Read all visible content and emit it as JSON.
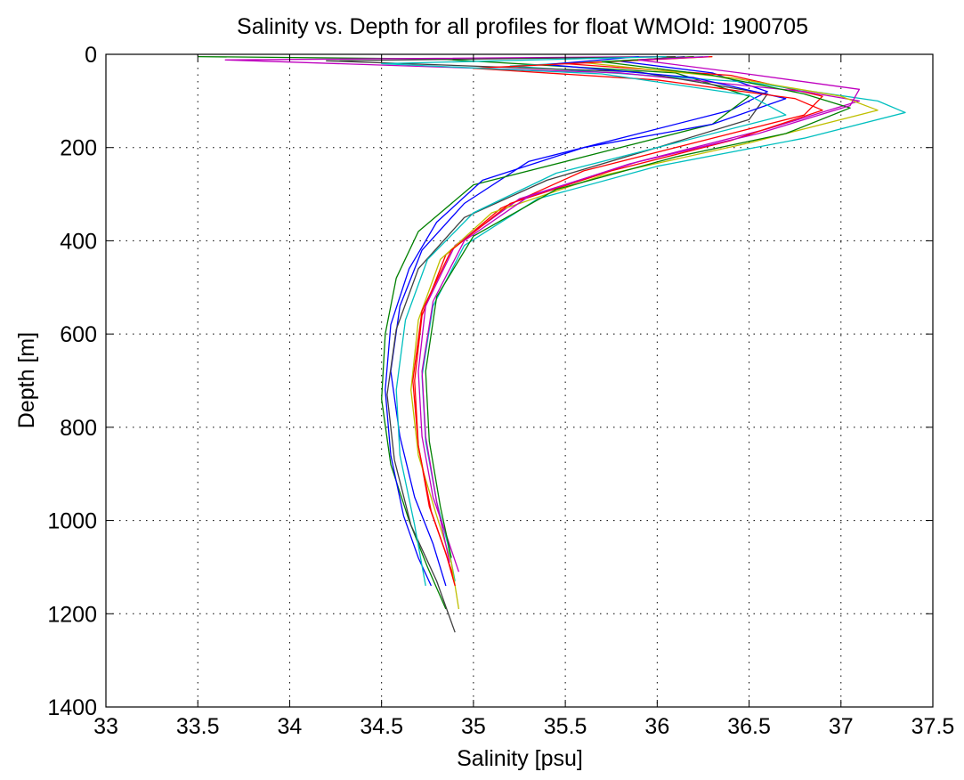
{
  "chart_data": {
    "type": "line",
    "title": "Salinity vs. Depth for all profiles for float WMOId: 1900705",
    "xlabel": "Salinity [psu]",
    "ylabel": "Depth [m]",
    "xlim": [
      33,
      37.5
    ],
    "ylim": [
      0,
      1400
    ],
    "y_reversed": true,
    "grid": true,
    "legend": "none",
    "xticks": [
      "33",
      "33.5",
      "34",
      "34.5",
      "35",
      "35.5",
      "36",
      "36.5",
      "37",
      "37.5"
    ],
    "yticks": [
      "0",
      "200",
      "400",
      "600",
      "800",
      "1000",
      "1200",
      "1400"
    ],
    "colors": [
      "#0000ff",
      "#008000",
      "#ff0000",
      "#00bfbf",
      "#bf00bf",
      "#bfbf00",
      "#404040"
    ],
    "series": [
      {
        "color": "#0000ff",
        "x": [
          36.15,
          35.8,
          36.3,
          36.6,
          36.4,
          35.9,
          35.3,
          34.95,
          34.72,
          34.6,
          34.55,
          34.6,
          34.68,
          34.78,
          34.85
        ],
        "y": [
          5,
          15,
          40,
          80,
          120,
          170,
          230,
          320,
          420,
          540,
          680,
          820,
          950,
          1050,
          1140
        ]
      },
      {
        "color": "#008000",
        "x": [
          33.5,
          34.8,
          36.1,
          36.5,
          36.3,
          35.7,
          35.0,
          34.7,
          34.58,
          34.52,
          34.5,
          34.55,
          34.65,
          34.75,
          34.85
        ],
        "y": [
          5,
          10,
          40,
          90,
          150,
          210,
          280,
          380,
          480,
          600,
          740,
          880,
          1000,
          1100,
          1190
        ]
      },
      {
        "color": "#ff0000",
        "x": [
          36.2,
          35.5,
          36.4,
          36.9,
          36.8,
          36.2,
          35.6,
          35.15,
          34.85,
          34.72,
          34.68,
          34.7,
          34.76,
          34.84,
          34.9
        ],
        "y": [
          5,
          20,
          45,
          90,
          130,
          190,
          250,
          330,
          430,
          560,
          700,
          840,
          970,
          1060,
          1130
        ]
      },
      {
        "color": "#00bfbf",
        "x": [
          36.25,
          35.2,
          36.5,
          37.2,
          37.35,
          36.8,
          36.0,
          35.35,
          34.95,
          34.78,
          34.72,
          34.74,
          34.8,
          34.86,
          34.9
        ],
        "y": [
          5,
          25,
          60,
          100,
          125,
          180,
          240,
          310,
          410,
          540,
          690,
          830,
          960,
          1050,
          1130
        ]
      },
      {
        "color": "#bf00bf",
        "x": [
          36.0,
          33.65,
          35.8,
          36.8,
          37.1,
          36.6,
          35.9,
          35.25,
          34.9,
          34.74,
          34.7,
          34.72,
          34.78,
          34.86,
          34.92
        ],
        "y": [
          5,
          12,
          40,
          80,
          100,
          160,
          230,
          310,
          410,
          540,
          680,
          820,
          950,
          1040,
          1110
        ]
      },
      {
        "color": "#bfbf00",
        "x": [
          36.3,
          35.6,
          36.4,
          37.0,
          37.2,
          36.5,
          35.7,
          35.1,
          34.82,
          34.7,
          34.66,
          34.7,
          34.8,
          34.88,
          34.92
        ],
        "y": [
          5,
          18,
          50,
          90,
          120,
          190,
          260,
          340,
          440,
          570,
          720,
          860,
          990,
          1090,
          1190
        ]
      },
      {
        "color": "#404040",
        "x": [
          36.1,
          34.2,
          35.9,
          36.6,
          36.5,
          36.0,
          35.4,
          34.95,
          34.7,
          34.58,
          34.53,
          34.57,
          34.66,
          34.8,
          34.9
        ],
        "y": [
          5,
          14,
          38,
          85,
          140,
          200,
          270,
          350,
          460,
          590,
          730,
          870,
          1010,
          1130,
          1240
        ]
      },
      {
        "color": "#0000ff",
        "x": [
          35.9,
          35.4,
          36.2,
          36.7,
          36.3,
          35.6,
          35.05,
          34.8,
          34.65,
          34.55,
          34.52,
          34.55,
          34.62,
          34.7,
          34.77
        ],
        "y": [
          5,
          22,
          50,
          95,
          150,
          200,
          270,
          360,
          460,
          580,
          720,
          860,
          990,
          1080,
          1140
        ]
      },
      {
        "color": "#ff0000",
        "x": [
          36.3,
          35.0,
          36.0,
          36.75,
          36.9,
          36.4,
          35.75,
          35.2,
          34.88,
          34.72,
          34.67,
          34.7,
          34.77,
          34.85,
          34.9
        ],
        "y": [
          5,
          30,
          55,
          95,
          120,
          185,
          250,
          320,
          420,
          550,
          700,
          840,
          980,
          1070,
          1140
        ]
      },
      {
        "color": "#008000",
        "x": [
          36.2,
          35.7,
          36.3,
          36.8,
          37.05,
          36.7,
          36.1,
          35.45,
          35.0,
          34.8,
          34.74,
          34.76,
          34.82,
          34.88
        ],
        "y": [
          5,
          16,
          45,
          85,
          115,
          170,
          220,
          290,
          390,
          520,
          680,
          830,
          970,
          1080
        ]
      },
      {
        "color": "#00bfbf",
        "x": [
          36.05,
          34.5,
          35.7,
          36.5,
          36.7,
          36.1,
          35.45,
          35.0,
          34.75,
          34.63,
          34.58,
          34.6,
          34.68,
          34.74
        ],
        "y": [
          5,
          20,
          42,
          88,
          130,
          190,
          255,
          340,
          440,
          570,
          720,
          860,
          1010,
          1140
        ]
      },
      {
        "color": "#bf00bf",
        "x": [
          36.28,
          35.9,
          36.45,
          37.1,
          37.05,
          36.55,
          35.85,
          35.3,
          34.95,
          34.78,
          34.72,
          34.74,
          34.8,
          34.87
        ],
        "y": [
          5,
          12,
          40,
          75,
          110,
          170,
          235,
          305,
          400,
          530,
          680,
          820,
          960,
          1090
        ]
      }
    ]
  }
}
